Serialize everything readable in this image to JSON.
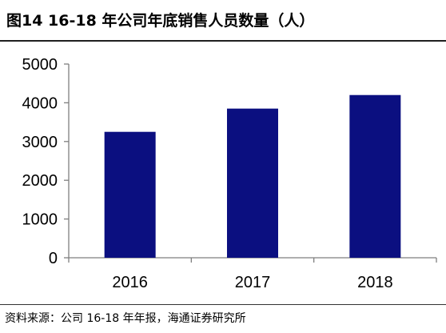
{
  "header": {
    "figure_title": "图14 16-18 年公司年底销售人员数量（人）"
  },
  "chart_data": {
    "type": "bar",
    "title": "图14 16-18 年公司年底销售人员数量（人）",
    "xlabel": "",
    "ylabel": "",
    "categories": [
      "2016",
      "2017",
      "2018"
    ],
    "values": [
      3250,
      3850,
      4200
    ],
    "ylim": [
      0,
      5000
    ],
    "yticks": [
      0,
      1000,
      2000,
      3000,
      4000,
      5000
    ],
    "grid": false,
    "legend": "none",
    "bar_color": "#0b0f80"
  },
  "footer": {
    "source": "资料来源：公司 16-18 年年报，海通证券研究所"
  }
}
